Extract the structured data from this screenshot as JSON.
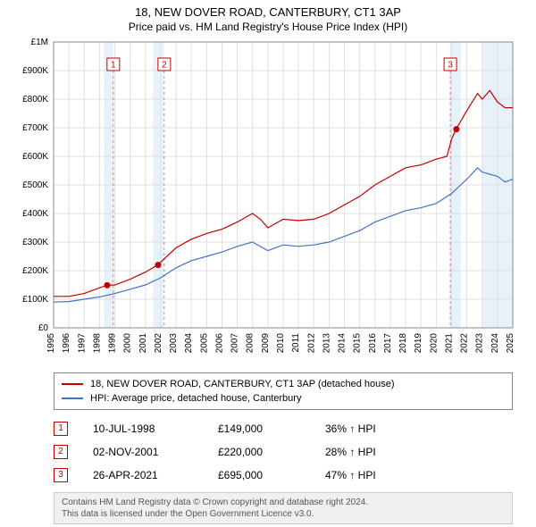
{
  "title_line1": "18, NEW DOVER ROAD, CANTERBURY, CT1 3AP",
  "title_line2": "Price paid vs. HM Land Registry's House Price Index (HPI)",
  "chart": {
    "type": "line",
    "x_range": [
      1995,
      2025
    ],
    "x_ticks": [
      1995,
      1996,
      1997,
      1998,
      1999,
      2000,
      2001,
      2002,
      2003,
      2004,
      2005,
      2006,
      2007,
      2008,
      2009,
      2010,
      2011,
      2012,
      2013,
      2014,
      2015,
      2016,
      2017,
      2018,
      2019,
      2020,
      2021,
      2022,
      2023,
      2024,
      2025
    ],
    "y_range": [
      0,
      1000000
    ],
    "y_ticks": [
      0,
      100000,
      200000,
      300000,
      400000,
      500000,
      600000,
      700000,
      800000,
      900000,
      1000000
    ],
    "y_tick_labels": [
      "£0",
      "£100K",
      "£200K",
      "£300K",
      "£400K",
      "£500K",
      "£600K",
      "£700K",
      "£800K",
      "£900K",
      "£1M"
    ],
    "grid_color": "#e0e0e0",
    "background_color": "#ffffff",
    "axis_label_fontsize": 10,
    "axis_color": "#888888",
    "series": [
      {
        "name": "18, NEW DOVER ROAD, CANTERBURY, CT1 3AP (detached house)",
        "color": "#c00000",
        "line_width": 1.2,
        "data": [
          [
            1995,
            110000
          ],
          [
            1996,
            110000
          ],
          [
            1997,
            120000
          ],
          [
            1998,
            140000
          ],
          [
            1998.5,
            149000
          ],
          [
            1999,
            150000
          ],
          [
            2000,
            170000
          ],
          [
            2001,
            195000
          ],
          [
            2001.8,
            220000
          ],
          [
            2002,
            230000
          ],
          [
            2003,
            280000
          ],
          [
            2004,
            310000
          ],
          [
            2005,
            330000
          ],
          [
            2006,
            345000
          ],
          [
            2007,
            370000
          ],
          [
            2008,
            400000
          ],
          [
            2008.5,
            380000
          ],
          [
            2009,
            350000
          ],
          [
            2010,
            380000
          ],
          [
            2011,
            375000
          ],
          [
            2012,
            380000
          ],
          [
            2013,
            400000
          ],
          [
            2014,
            430000
          ],
          [
            2015,
            460000
          ],
          [
            2016,
            500000
          ],
          [
            2017,
            530000
          ],
          [
            2018,
            560000
          ],
          [
            2019,
            570000
          ],
          [
            2020,
            590000
          ],
          [
            2020.7,
            600000
          ],
          [
            2021,
            660000
          ],
          [
            2021.3,
            695000
          ],
          [
            2022,
            760000
          ],
          [
            2022.7,
            820000
          ],
          [
            2023,
            800000
          ],
          [
            2023.5,
            830000
          ],
          [
            2024,
            790000
          ],
          [
            2024.5,
            770000
          ],
          [
            2025,
            770000
          ]
        ]
      },
      {
        "name": "HPI: Average price, detached house, Canterbury",
        "color": "#4472c4",
        "line_width": 1.2,
        "data": [
          [
            1995,
            90000
          ],
          [
            1996,
            92000
          ],
          [
            1997,
            100000
          ],
          [
            1998,
            108000
          ],
          [
            1999,
            120000
          ],
          [
            2000,
            135000
          ],
          [
            2001,
            150000
          ],
          [
            2002,
            175000
          ],
          [
            2003,
            210000
          ],
          [
            2004,
            235000
          ],
          [
            2005,
            250000
          ],
          [
            2006,
            265000
          ],
          [
            2007,
            285000
          ],
          [
            2008,
            300000
          ],
          [
            2008.5,
            285000
          ],
          [
            2009,
            270000
          ],
          [
            2010,
            290000
          ],
          [
            2011,
            285000
          ],
          [
            2012,
            290000
          ],
          [
            2013,
            300000
          ],
          [
            2014,
            320000
          ],
          [
            2015,
            340000
          ],
          [
            2016,
            370000
          ],
          [
            2017,
            390000
          ],
          [
            2018,
            410000
          ],
          [
            2019,
            420000
          ],
          [
            2020,
            435000
          ],
          [
            2021,
            470000
          ],
          [
            2022,
            520000
          ],
          [
            2022.7,
            560000
          ],
          [
            2023,
            545000
          ],
          [
            2024,
            530000
          ],
          [
            2024.5,
            510000
          ],
          [
            2025,
            520000
          ]
        ]
      }
    ],
    "highlight_bands": [
      {
        "x_start": 1998.3,
        "x_end": 1998.9,
        "color": "#d0e4f5"
      },
      {
        "x_start": 2001.5,
        "x_end": 2002.2,
        "color": "#d0e4f5"
      },
      {
        "x_start": 2020.9,
        "x_end": 2021.6,
        "color": "#d0e4f5"
      },
      {
        "x_start": 2023.0,
        "x_end": 2025.0,
        "color": "#d0e4f5"
      }
    ],
    "marker_points": [
      {
        "id": "1",
        "x": 1998.5,
        "y": 149000,
        "flag_x_offset": 0.4
      },
      {
        "id": "2",
        "x": 2001.83,
        "y": 220000,
        "flag_x_offset": 0.4
      },
      {
        "id": "3",
        "x": 2021.32,
        "y": 695000,
        "flag_x_offset": -0.4
      }
    ],
    "marker_dot_color": "#c00000",
    "marker_dot_radius": 3.5,
    "marker_flag_border": "#c00000",
    "marker_flag_bg": "#ffffff",
    "marker_flag_fontsize": 10
  },
  "legend": {
    "items": [
      {
        "color": "#c00000",
        "label": "18, NEW DOVER ROAD, CANTERBURY, CT1 3AP (detached house)"
      },
      {
        "color": "#4472c4",
        "label": "HPI: Average price, detached house, Canterbury"
      }
    ]
  },
  "markers_table": [
    {
      "id": "1",
      "date": "10-JUL-1998",
      "price": "£149,000",
      "hpi": "36% ↑ HPI"
    },
    {
      "id": "2",
      "date": "02-NOV-2001",
      "price": "£220,000",
      "hpi": "28% ↑ HPI"
    },
    {
      "id": "3",
      "date": "26-APR-2021",
      "price": "£695,000",
      "hpi": "47% ↑ HPI"
    }
  ],
  "footer_line1": "Contains HM Land Registry data © Crown copyright and database right 2024.",
  "footer_line2": "This data is licensed under the Open Government Licence v3.0."
}
